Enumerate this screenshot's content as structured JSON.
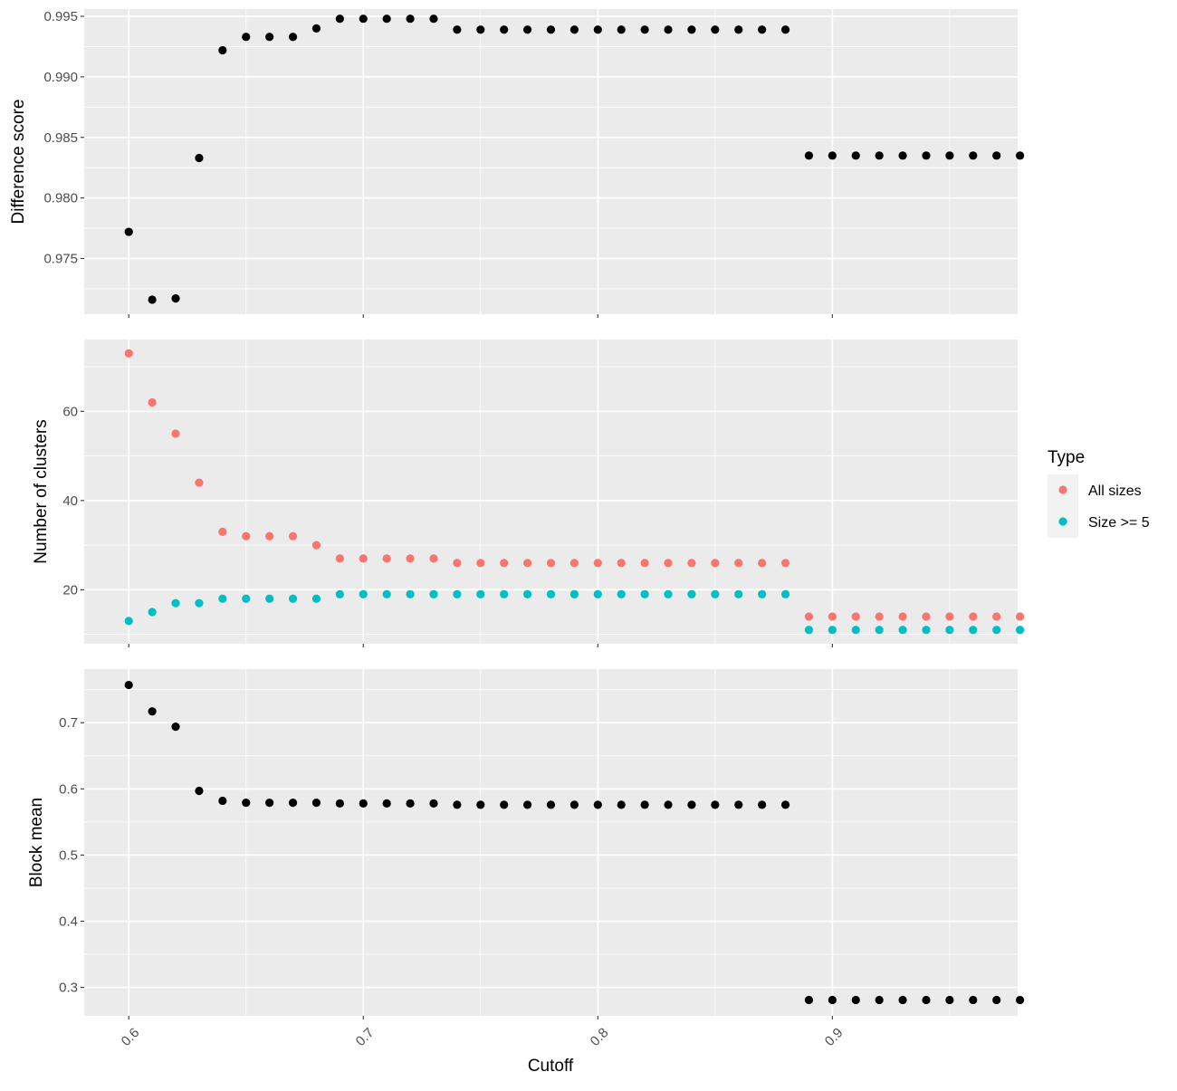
{
  "chart_data": {
    "type": "scatter",
    "xlabel": "Cutoff",
    "x_ticks": [
      "0.6",
      "0.7",
      "0.8",
      "0.9"
    ],
    "x_tick_values": [
      0.6,
      0.7,
      0.8,
      0.9
    ],
    "xlim": [
      0.581,
      0.979
    ],
    "x_grid_minor": [
      0.65,
      0.75,
      0.85,
      0.95
    ],
    "x": [
      0.6,
      0.61,
      0.62,
      0.63,
      0.64,
      0.65,
      0.66,
      0.67,
      0.68,
      0.69,
      0.7,
      0.71,
      0.72,
      0.73,
      0.74,
      0.75,
      0.76,
      0.77,
      0.78,
      0.79,
      0.8,
      0.81,
      0.82,
      0.83,
      0.84,
      0.85,
      0.86,
      0.87,
      0.88,
      0.89,
      0.9,
      0.91,
      0.92,
      0.93,
      0.94,
      0.95,
      0.96,
      0.97,
      0.98
    ],
    "grid": true,
    "legend_position": "right",
    "legend": {
      "title": "Type",
      "entries": [
        {
          "name": "All sizes",
          "color": "#F8766D"
        },
        {
          "name": "Size >= 5",
          "color": "#00BFC4"
        }
      ]
    },
    "panels": [
      {
        "ylabel": "Difference score",
        "ylim": [
          0.9704,
          0.9956
        ],
        "y_ticks": [
          "0.975",
          "0.980",
          "0.985",
          "0.990",
          "0.995"
        ],
        "y_tick_values": [
          0.975,
          0.98,
          0.985,
          0.99,
          0.995
        ],
        "y_grid_minor": [
          0.9725,
          0.9775,
          0.9825,
          0.9875,
          0.9925
        ],
        "series": [
          {
            "color": "#000000",
            "values": [
              0.9772,
              0.9716,
              0.9717,
              0.9833,
              0.9922,
              0.9933,
              0.9933,
              0.9933,
              0.994,
              0.9948,
              0.9948,
              0.9948,
              0.9948,
              0.9948,
              0.9939,
              0.9939,
              0.9939,
              0.9939,
              0.9939,
              0.9939,
              0.9939,
              0.9939,
              0.9939,
              0.9939,
              0.9939,
              0.9939,
              0.9939,
              0.9939,
              0.9939,
              0.9835,
              0.9835,
              0.9835,
              0.9835,
              0.9835,
              0.9835,
              0.9835,
              0.9835,
              0.9835,
              0.9835
            ]
          }
        ]
      },
      {
        "ylabel": "Number of clusters",
        "ylim": [
          7.9,
          76.1
        ],
        "y_ticks": [
          "20",
          "40",
          "60"
        ],
        "y_tick_values": [
          20,
          40,
          60
        ],
        "y_grid_minor": [
          10,
          30,
          50,
          70
        ],
        "series": [
          {
            "name": "All sizes",
            "color": "#F8766D",
            "values": [
              73,
              62,
              55,
              44,
              33,
              32,
              32,
              32,
              30,
              27,
              27,
              27,
              27,
              27,
              26,
              26,
              26,
              26,
              26,
              26,
              26,
              26,
              26,
              26,
              26,
              26,
              26,
              26,
              26,
              14,
              14,
              14,
              14,
              14,
              14,
              14,
              14,
              14,
              14
            ]
          },
          {
            "name": "Size >= 5",
            "color": "#00BFC4",
            "values": [
              13,
              15,
              17,
              17,
              18,
              18,
              18,
              18,
              18,
              19,
              19,
              19,
              19,
              19,
              19,
              19,
              19,
              19,
              19,
              19,
              19,
              19,
              19,
              19,
              19,
              19,
              19,
              19,
              19,
              11,
              11,
              11,
              11,
              11,
              11,
              11,
              11,
              11,
              11
            ]
          }
        ]
      },
      {
        "ylabel": "Block mean",
        "ylim": [
          0.257,
          0.781
        ],
        "y_ticks": [
          "0.3",
          "0.4",
          "0.5",
          "0.6",
          "0.7"
        ],
        "y_tick_values": [
          0.3,
          0.4,
          0.5,
          0.6,
          0.7
        ],
        "y_grid_minor": [
          0.35,
          0.45,
          0.55,
          0.65,
          0.75
        ],
        "series": [
          {
            "color": "#000000",
            "values": [
              0.757,
              0.717,
              0.694,
              0.597,
              0.582,
              0.579,
              0.579,
              0.579,
              0.579,
              0.578,
              0.578,
              0.578,
              0.578,
              0.578,
              0.576,
              0.576,
              0.576,
              0.576,
              0.576,
              0.576,
              0.576,
              0.576,
              0.576,
              0.576,
              0.576,
              0.576,
              0.576,
              0.576,
              0.576,
              0.281,
              0.281,
              0.281,
              0.281,
              0.281,
              0.281,
              0.281,
              0.281,
              0.281,
              0.281
            ]
          }
        ]
      }
    ]
  }
}
